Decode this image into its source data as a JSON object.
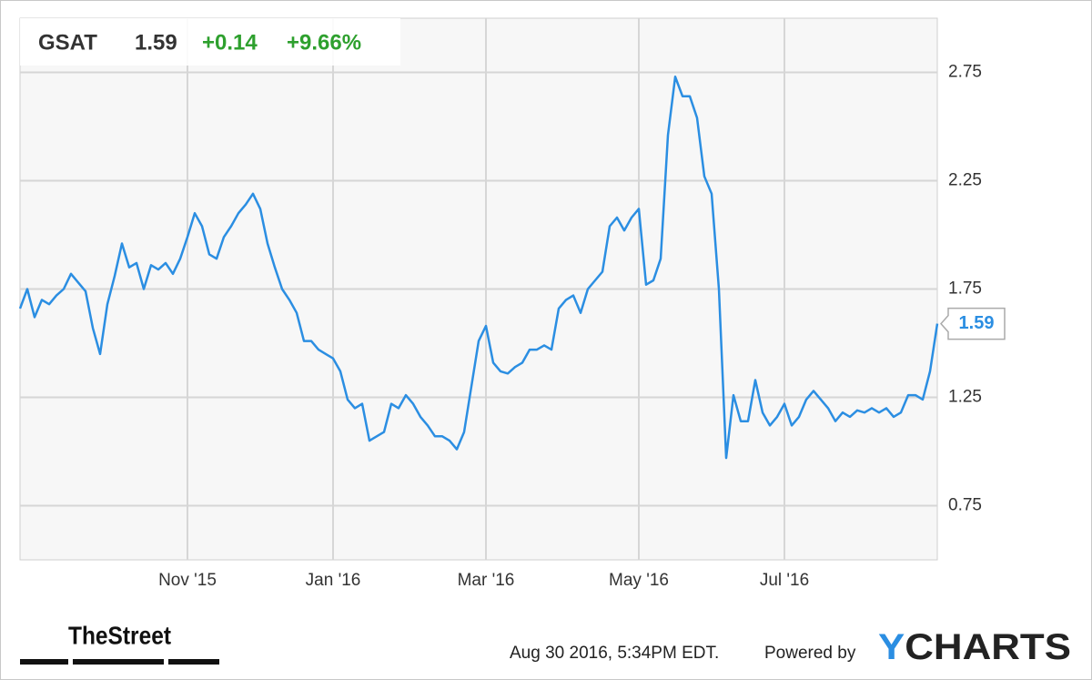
{
  "chart_data": {
    "type": "line",
    "ticker": "GSAT",
    "change": "+0.14",
    "change_percent": "+9.66%",
    "timestamp": "Aug 30 2016, 5:34PM EDT.",
    "powered_by": "Powered by",
    "brand": "YCHARTS",
    "source_logo": "TheStreet",
    "categories": [
      null,
      null,
      null,
      null,
      null,
      null,
      null,
      null,
      null,
      null,
      null,
      null,
      null,
      null,
      null,
      null,
      null,
      null,
      null,
      null,
      null,
      null,
      null,
      "Nov '15",
      null,
      null,
      null,
      null,
      null,
      null,
      null,
      null,
      null,
      null,
      null,
      null,
      null,
      null,
      null,
      null,
      null,
      null,
      null,
      "Jan '16",
      null,
      null,
      null,
      null,
      null,
      null,
      null,
      null,
      null,
      null,
      null,
      null,
      null,
      null,
      null,
      null,
      null,
      null,
      null,
      null,
      "Mar '16",
      null,
      null,
      null,
      null,
      null,
      null,
      null,
      null,
      null,
      null,
      null,
      null,
      null,
      null,
      null,
      null,
      null,
      null,
      null,
      null,
      "May '16",
      null,
      null,
      null,
      null,
      null,
      null,
      null,
      null,
      null,
      null,
      null,
      null,
      null,
      null,
      null,
      null,
      null,
      null,
      null,
      "Jul '16",
      null,
      null,
      null,
      null,
      null,
      null,
      null,
      null,
      null,
      null,
      null,
      null,
      null,
      null,
      null,
      null,
      null,
      null,
      null,
      null,
      null
    ],
    "series": [
      {
        "name": "GSAT",
        "color": "#2b8ee2",
        "values": [
          1.66,
          1.75,
          1.62,
          1.7,
          1.68,
          1.72,
          1.75,
          1.82,
          1.78,
          1.74,
          1.57,
          1.45,
          1.68,
          1.81,
          1.96,
          1.85,
          1.87,
          1.75,
          1.86,
          1.84,
          1.87,
          1.82,
          1.89,
          1.99,
          2.1,
          2.04,
          1.91,
          1.89,
          1.99,
          2.04,
          2.1,
          2.14,
          2.19,
          2.12,
          1.96,
          1.85,
          1.75,
          1.7,
          1.64,
          1.51,
          1.51,
          1.47,
          1.45,
          1.43,
          1.37,
          1.24,
          1.2,
          1.22,
          1.05,
          1.07,
          1.09,
          1.22,
          1.2,
          1.26,
          1.22,
          1.16,
          1.12,
          1.07,
          1.07,
          1.05,
          1.01,
          1.09,
          1.3,
          1.51,
          1.58,
          1.41,
          1.37,
          1.36,
          1.39,
          1.41,
          1.47,
          1.47,
          1.49,
          1.47,
          1.66,
          1.7,
          1.72,
          1.64,
          1.75,
          1.79,
          1.83,
          2.04,
          2.08,
          2.02,
          2.08,
          2.12,
          1.77,
          1.79,
          1.89,
          2.46,
          2.73,
          2.64,
          2.64,
          2.54,
          2.27,
          2.19,
          1.75,
          0.97,
          1.26,
          1.14,
          1.14,
          1.33,
          1.18,
          1.12,
          1.16,
          1.22,
          1.12,
          1.16,
          1.24,
          1.28,
          1.24,
          1.2,
          1.14,
          1.18,
          1.16,
          1.19,
          1.18,
          1.2,
          1.18,
          1.2,
          1.16,
          1.18,
          1.26,
          1.26,
          1.24,
          1.37,
          1.59
        ]
      }
    ],
    "ylim": [
      0.5,
      3.0
    ],
    "yticks": [
      0.75,
      1.25,
      1.75,
      2.25,
      2.75
    ],
    "grid": true
  }
}
